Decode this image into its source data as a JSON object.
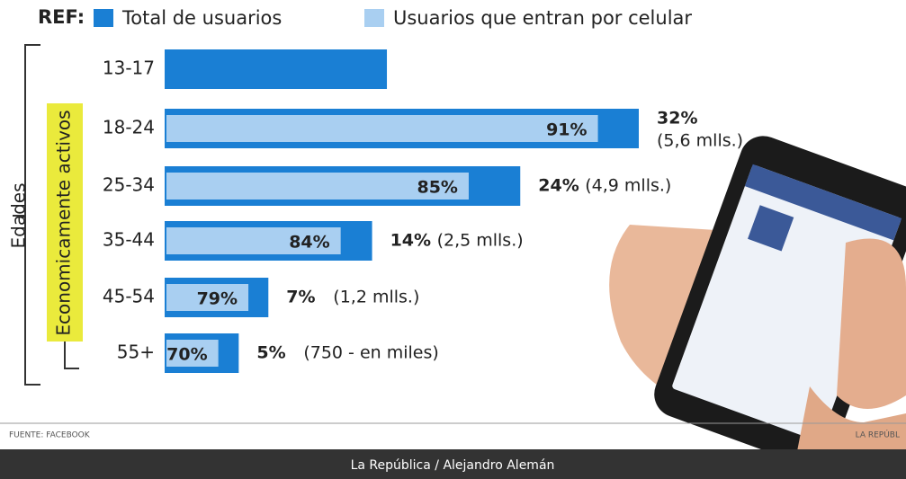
{
  "chart_data": {
    "type": "bar",
    "orientation": "horizontal",
    "legend_title": "REF:",
    "axis_label": "Edades",
    "group_label": "Economicamente activos",
    "categories": [
      "13-17",
      "18-24",
      "25-34",
      "35-44",
      "45-54",
      "55+"
    ],
    "series": [
      {
        "name": "Total de usuarios",
        "color": "#1a7fd4",
        "values": [
          15,
          32,
          24,
          14,
          7,
          5
        ],
        "value_labels": [
          null,
          "32%",
          "24%",
          "14%",
          "7%",
          "5%"
        ]
      },
      {
        "name": "Usuarios que entran por celular",
        "color": "#a9cff1",
        "values": [
          null,
          91,
          85,
          84,
          79,
          70
        ],
        "value_labels": [
          null,
          "91%",
          "85%",
          "84%",
          "79%",
          "70%"
        ]
      }
    ],
    "user_labels": [
      null,
      "(5,6 mlls.)",
      "(4,9 mlls.)",
      "(2,5 mlls.)",
      "(1,2 mlls.)",
      "(750 - en miles)"
    ],
    "source": "FUENTE: FACEBOOK",
    "publisher_cut": "LA REPÚBL",
    "credit": "La República / Alejandro Alemán"
  }
}
